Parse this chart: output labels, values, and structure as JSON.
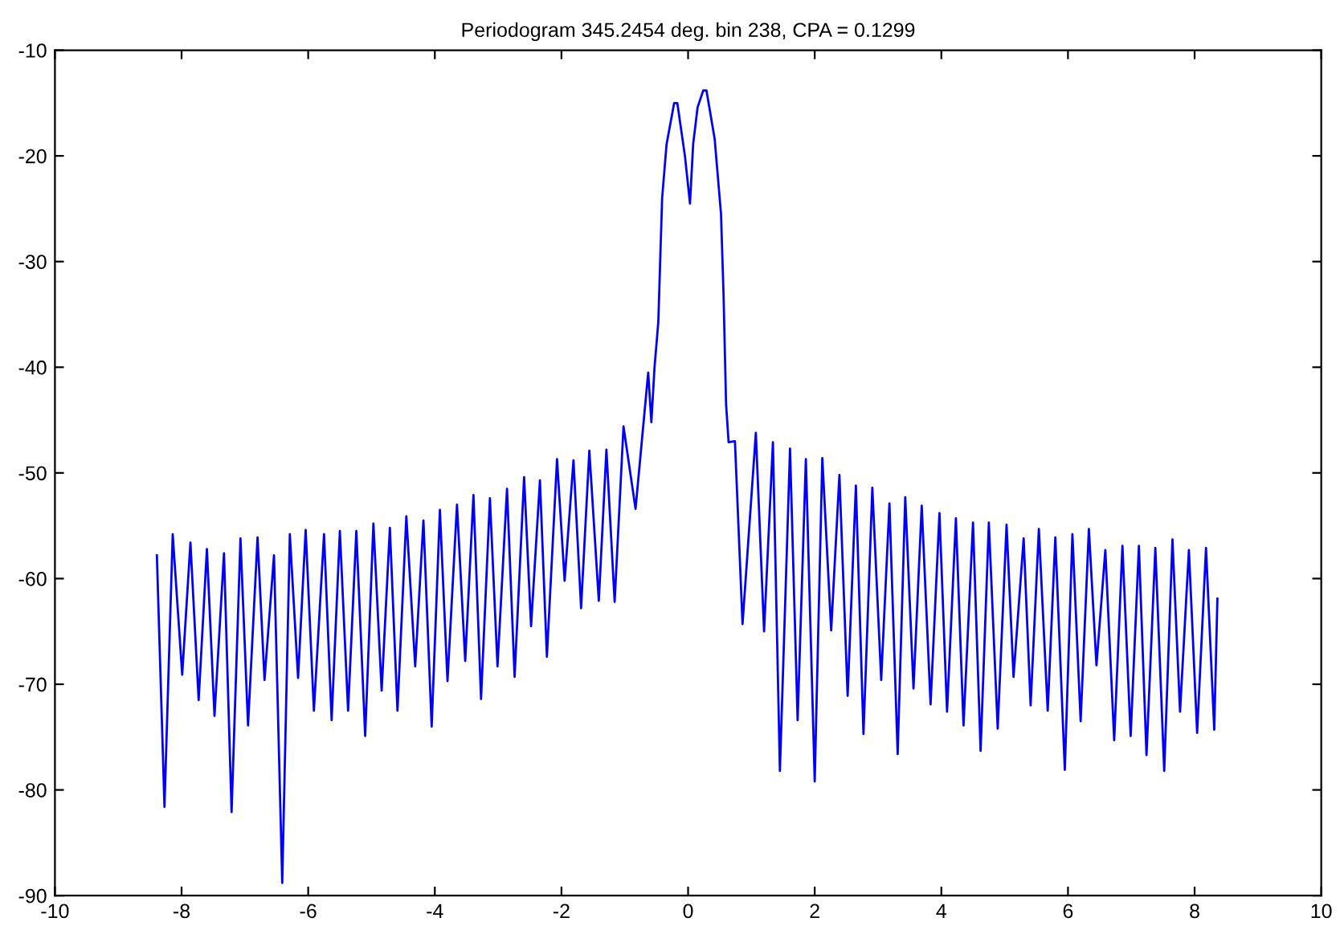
{
  "chart_data": {
    "type": "line",
    "title": "Periodogram 345.2454 deg. bin 238, CPA = 0.1299",
    "x": [
      -8.39,
      -8.27,
      -8.14,
      -7.99,
      -7.86,
      -7.73,
      -7.6,
      -7.48,
      -7.33,
      -7.21,
      -7.07,
      -6.95,
      -6.8,
      -6.69,
      -6.54,
      -6.41,
      -6.29,
      -6.16,
      -6.04,
      -5.91,
      -5.75,
      -5.63,
      -5.5,
      -5.37,
      -5.24,
      -5.1,
      -4.97,
      -4.84,
      -4.71,
      -4.59,
      -4.45,
      -4.31,
      -4.18,
      -4.05,
      -3.92,
      -3.8,
      -3.65,
      -3.52,
      -3.39,
      -3.27,
      -3.13,
      -3.01,
      -2.86,
      -2.74,
      -2.59,
      -2.48,
      -2.34,
      -2.23,
      -2.07,
      -1.95,
      -1.81,
      -1.69,
      -1.56,
      -1.41,
      -1.29,
      -1.16,
      -1.02,
      -0.83,
      -0.63,
      -0.58,
      -0.53,
      -0.47,
      -0.44,
      -0.41,
      -0.34,
      -0.22,
      -0.17,
      -0.05,
      0.03,
      0.08,
      0.15,
      0.24,
      0.29,
      0.42,
      0.52,
      0.56,
      0.6,
      0.64,
      0.74,
      0.86,
      1.07,
      1.2,
      1.34,
      1.45,
      1.61,
      1.73,
      1.86,
      2.0,
      2.12,
      2.26,
      2.39,
      2.52,
      2.65,
      2.77,
      2.91,
      3.05,
      3.18,
      3.31,
      3.43,
      3.56,
      3.69,
      3.83,
      3.97,
      4.09,
      4.23,
      4.35,
      4.5,
      4.62,
      4.75,
      4.89,
      5.03,
      5.14,
      5.3,
      5.41,
      5.54,
      5.68,
      5.8,
      5.95,
      6.07,
      6.2,
      6.33,
      6.45,
      6.59,
      6.73,
      6.86,
      6.99,
      7.12,
      7.24,
      7.38,
      7.52,
      7.65,
      7.77,
      7.91,
      8.04,
      8.18,
      8.31,
      8.36
    ],
    "series": [
      {
        "color": "#0000ff",
        "values": [
          -57.8,
          -81.6,
          -55.8,
          -69.1,
          -56.6,
          -71.5,
          -57.2,
          -73.0,
          -57.6,
          -82.1,
          -56.2,
          -73.9,
          -56.1,
          -69.6,
          -57.8,
          -88.8,
          -55.8,
          -69.4,
          -55.4,
          -72.5,
          -55.8,
          -73.4,
          -55.5,
          -72.5,
          -55.5,
          -74.9,
          -54.8,
          -70.6,
          -55.2,
          -72.5,
          -54.1,
          -68.3,
          -54.5,
          -74.0,
          -53.5,
          -69.7,
          -53.0,
          -67.8,
          -52.1,
          -71.4,
          -52.4,
          -68.3,
          -51.5,
          -69.3,
          -50.4,
          -64.5,
          -50.7,
          -67.4,
          -48.7,
          -60.2,
          -48.8,
          -62.8,
          -47.9,
          -62.1,
          -47.8,
          -62.2,
          -45.6,
          -53.4,
          -40.5,
          -45.2,
          -40.0,
          -35.7,
          -29.8,
          -24.0,
          -18.9,
          -15.0,
          -15.0,
          -20.0,
          -24.5,
          -18.9,
          -15.4,
          -13.8,
          -13.8,
          -18.4,
          -25.5,
          -33.1,
          -43.5,
          -47.1,
          -47.0,
          -64.3,
          -46.2,
          -65.0,
          -47.1,
          -78.2,
          -47.7,
          -73.4,
          -48.7,
          -79.2,
          -48.6,
          -64.9,
          -50.2,
          -71.1,
          -51.2,
          -74.7,
          -51.4,
          -69.6,
          -52.9,
          -76.6,
          -52.3,
          -70.4,
          -53.1,
          -71.9,
          -53.8,
          -72.6,
          -54.3,
          -73.9,
          -54.7,
          -76.3,
          -54.7,
          -74.2,
          -54.9,
          -69.3,
          -56.2,
          -72.0,
          -55.3,
          -72.5,
          -56.1,
          -78.1,
          -55.8,
          -73.5,
          -55.3,
          -68.2,
          -57.3,
          -75.3,
          -56.9,
          -74.9,
          -56.9,
          -76.7,
          -57.1,
          -78.2,
          -56.3,
          -72.6,
          -57.3,
          -74.6,
          -57.1,
          -74.3,
          -61.9
        ]
      }
    ],
    "xlim": [
      -10,
      10
    ],
    "xticks": [
      -10,
      -8,
      -6,
      -4,
      -2,
      0,
      2,
      4,
      6,
      8,
      10
    ],
    "ylim": [
      -90,
      -10
    ],
    "yticks": [
      -90,
      -80,
      -70,
      -60,
      -50,
      -40,
      -30,
      -20,
      -10
    ],
    "grid": false,
    "legend": false,
    "marker": "none",
    "line_style": "solid"
  }
}
